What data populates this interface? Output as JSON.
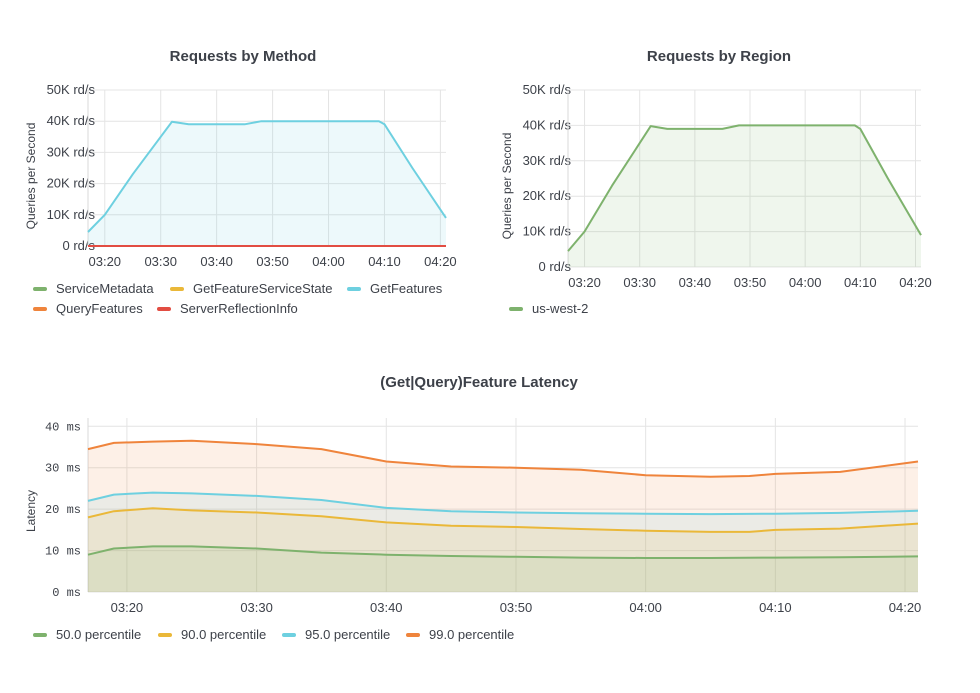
{
  "chart_data": [
    {
      "id": "method",
      "type": "area",
      "title": "Requests by Method",
      "ylabel": "Queries per Second",
      "y_ticks": [
        "0 rd/s",
        "10K rd/s",
        "20K rd/s",
        "30K rd/s",
        "40K rd/s",
        "50K rd/s"
      ],
      "x_ticks": [
        "03:20",
        "03:30",
        "03:40",
        "03:50",
        "04:00",
        "04:10",
        "04:20"
      ],
      "ylim": [
        0,
        50000
      ],
      "xlim": [
        "03:17",
        "04:21"
      ],
      "grid": true,
      "legend_position": "bottom",
      "series": [
        {
          "name": "ServiceMetadata",
          "color": "#7eb26d",
          "values": []
        },
        {
          "name": "GetFeatureServiceState",
          "color": "#eab839",
          "values": []
        },
        {
          "name": "GetFeatures",
          "color": "#6ed0e0",
          "fill": true,
          "values": [
            [
              "03:17",
              4500
            ],
            [
              "03:20",
              10000
            ],
            [
              "03:25",
              23000
            ],
            [
              "03:30",
              35000
            ],
            [
              "03:32",
              39800
            ],
            [
              "03:35",
              39000
            ],
            [
              "03:40",
              39000
            ],
            [
              "03:45",
              39000
            ],
            [
              "03:48",
              40000
            ],
            [
              "03:55",
              40000
            ],
            [
              "04:00",
              40000
            ],
            [
              "04:05",
              40000
            ],
            [
              "04:09",
              40000
            ],
            [
              "04:10",
              39000
            ],
            [
              "04:15",
              25000
            ],
            [
              "04:21",
              9000
            ]
          ]
        },
        {
          "name": "QueryFeatures",
          "color": "#ef843c",
          "values": []
        },
        {
          "name": "ServerReflectionInfo",
          "color": "#e24d42",
          "values": [
            [
              "03:17",
              0
            ],
            [
              "04:21",
              0
            ]
          ]
        }
      ]
    },
    {
      "id": "region",
      "type": "area",
      "title": "Requests by Region",
      "ylabel": "Queries per Second",
      "y_ticks": [
        "0 rd/s",
        "10K rd/s",
        "20K rd/s",
        "30K rd/s",
        "40K rd/s",
        "50K rd/s"
      ],
      "x_ticks": [
        "03:20",
        "03:30",
        "03:40",
        "03:50",
        "04:00",
        "04:10",
        "04:20"
      ],
      "ylim": [
        0,
        50000
      ],
      "xlim": [
        "03:17",
        "04:21"
      ],
      "grid": true,
      "legend_position": "bottom",
      "series": [
        {
          "name": "us-west-2",
          "color": "#7eb26d",
          "fill": true,
          "values": [
            [
              "03:17",
              4500
            ],
            [
              "03:20",
              10000
            ],
            [
              "03:25",
              23000
            ],
            [
              "03:30",
              35000
            ],
            [
              "03:32",
              39800
            ],
            [
              "03:35",
              39000
            ],
            [
              "03:40",
              39000
            ],
            [
              "03:45",
              39000
            ],
            [
              "03:48",
              40000
            ],
            [
              "03:55",
              40000
            ],
            [
              "04:00",
              40000
            ],
            [
              "04:05",
              40000
            ],
            [
              "04:09",
              40000
            ],
            [
              "04:10",
              39000
            ],
            [
              "04:15",
              25000
            ],
            [
              "04:21",
              9000
            ]
          ]
        }
      ]
    },
    {
      "id": "latency",
      "type": "area",
      "title": "(Get|Query)Feature Latency",
      "ylabel": "Latency",
      "y_ticks": [
        "0 ms",
        "10 ms",
        "20 ms",
        "30 ms",
        "40 ms"
      ],
      "x_ticks": [
        "03:20",
        "03:30",
        "03:40",
        "03:50",
        "04:00",
        "04:10",
        "04:20"
      ],
      "ylim": [
        0,
        42
      ],
      "xlim": [
        "03:17",
        "04:21"
      ],
      "grid": true,
      "legend_position": "bottom",
      "series": [
        {
          "name": "50.0 percentile",
          "color": "#7eb26d",
          "values": [
            [
              "03:17",
              9
            ],
            [
              "03:19",
              10.5
            ],
            [
              "03:22",
              11
            ],
            [
              "03:25",
              11
            ],
            [
              "03:30",
              10.5
            ],
            [
              "03:35",
              9.5
            ],
            [
              "03:40",
              9
            ],
            [
              "03:45",
              8.7
            ],
            [
              "03:50",
              8.5
            ],
            [
              "03:55",
              8.3
            ],
            [
              "04:00",
              8.2
            ],
            [
              "04:05",
              8.2
            ],
            [
              "04:10",
              8.3
            ],
            [
              "04:15",
              8.4
            ],
            [
              "04:21",
              8.6
            ]
          ]
        },
        {
          "name": "90.0 percentile",
          "color": "#eab839",
          "values": [
            [
              "03:17",
              18
            ],
            [
              "03:19",
              19.5
            ],
            [
              "03:22",
              20.2
            ],
            [
              "03:25",
              19.7
            ],
            [
              "03:30",
              19.2
            ],
            [
              "03:35",
              18.3
            ],
            [
              "03:40",
              16.8
            ],
            [
              "03:45",
              16
            ],
            [
              "03:50",
              15.7
            ],
            [
              "03:55",
              15.2
            ],
            [
              "04:00",
              14.8
            ],
            [
              "04:05",
              14.5
            ],
            [
              "04:08",
              14.5
            ],
            [
              "04:10",
              15
            ],
            [
              "04:15",
              15.3
            ],
            [
              "04:21",
              16.5
            ]
          ]
        },
        {
          "name": "95.0 percentile",
          "color": "#6ed0e0",
          "values": [
            [
              "03:17",
              22
            ],
            [
              "03:19",
              23.5
            ],
            [
              "03:22",
              24
            ],
            [
              "03:25",
              23.8
            ],
            [
              "03:30",
              23.2
            ],
            [
              "03:35",
              22.2
            ],
            [
              "03:40",
              20.3
            ],
            [
              "03:45",
              19.5
            ],
            [
              "03:50",
              19.2
            ],
            [
              "03:55",
              19
            ],
            [
              "04:00",
              18.9
            ],
            [
              "04:05",
              18.8
            ],
            [
              "04:10",
              18.9
            ],
            [
              "04:15",
              19.1
            ],
            [
              "04:21",
              19.6
            ]
          ]
        },
        {
          "name": "99.0 percentile",
          "color": "#ef843c",
          "values": [
            [
              "03:17",
              34.5
            ],
            [
              "03:19",
              36
            ],
            [
              "03:22",
              36.3
            ],
            [
              "03:25",
              36.5
            ],
            [
              "03:30",
              35.7
            ],
            [
              "03:35",
              34.5
            ],
            [
              "03:40",
              31.5
            ],
            [
              "03:45",
              30.3
            ],
            [
              "03:50",
              30
            ],
            [
              "03:55",
              29.5
            ],
            [
              "04:00",
              28.2
            ],
            [
              "04:05",
              27.8
            ],
            [
              "04:08",
              28
            ],
            [
              "04:10",
              28.5
            ],
            [
              "04:15",
              29
            ],
            [
              "04:21",
              31.5
            ]
          ]
        }
      ]
    }
  ]
}
